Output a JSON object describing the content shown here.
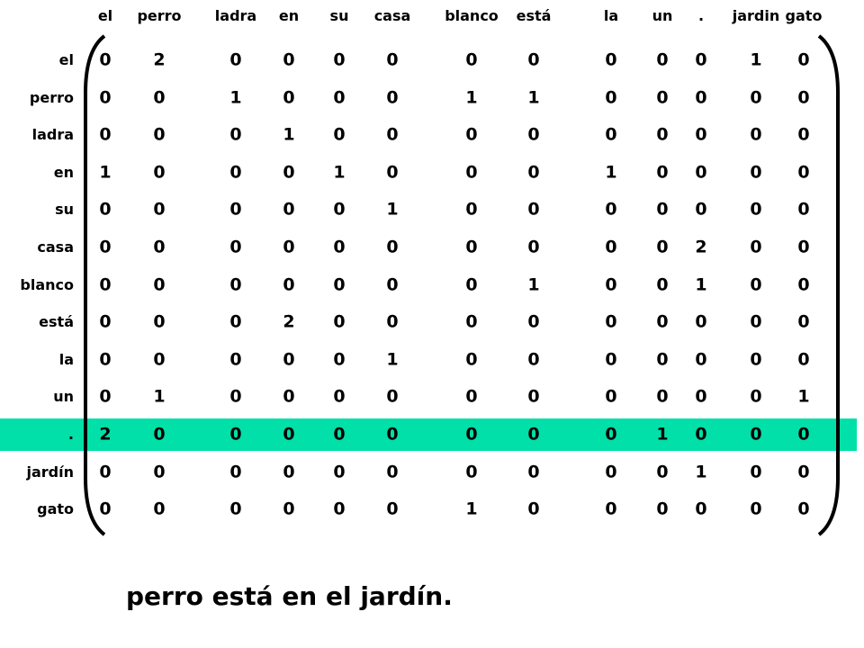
{
  "matrix": {
    "column_headers": [
      "el",
      "perro",
      "ladra",
      "en",
      "su",
      "casa",
      "blanco",
      "está",
      "la",
      "un",
      ".",
      "jardin",
      "gato"
    ],
    "row_labels": [
      "el",
      "perro",
      "ladra",
      "en",
      "su",
      "casa",
      "blanco",
      "está",
      "la",
      "un",
      ".",
      "jardín",
      "gato"
    ],
    "values": [
      [
        0,
        2,
        0,
        0,
        0,
        0,
        0,
        0,
        0,
        0,
        0,
        1,
        0
      ],
      [
        0,
        0,
        1,
        0,
        0,
        0,
        1,
        1,
        0,
        0,
        0,
        0,
        0
      ],
      [
        0,
        0,
        0,
        1,
        0,
        0,
        0,
        0,
        0,
        0,
        0,
        0,
        0
      ],
      [
        1,
        0,
        0,
        0,
        1,
        0,
        0,
        0,
        1,
        0,
        0,
        0,
        0
      ],
      [
        0,
        0,
        0,
        0,
        0,
        1,
        0,
        0,
        0,
        0,
        0,
        0,
        0
      ],
      [
        0,
        0,
        0,
        0,
        0,
        0,
        0,
        0,
        0,
        0,
        2,
        0,
        0
      ],
      [
        0,
        0,
        0,
        0,
        0,
        0,
        0,
        1,
        0,
        0,
        1,
        0,
        0
      ],
      [
        0,
        0,
        0,
        2,
        0,
        0,
        0,
        0,
        0,
        0,
        0,
        0,
        0
      ],
      [
        0,
        0,
        0,
        0,
        0,
        1,
        0,
        0,
        0,
        0,
        0,
        0,
        0
      ],
      [
        0,
        1,
        0,
        0,
        0,
        0,
        0,
        0,
        0,
        0,
        0,
        0,
        1
      ],
      [
        2,
        0,
        0,
        0,
        0,
        0,
        0,
        0,
        0,
        1,
        0,
        0,
        0
      ],
      [
        0,
        0,
        0,
        0,
        0,
        0,
        0,
        0,
        0,
        0,
        1,
        0,
        0
      ],
      [
        0,
        0,
        0,
        0,
        0,
        0,
        1,
        0,
        0,
        0,
        0,
        0,
        0
      ]
    ],
    "highlighted_row": ".",
    "highlight_color": "#00e0a8"
  },
  "caption": "perro está en el jardín."
}
